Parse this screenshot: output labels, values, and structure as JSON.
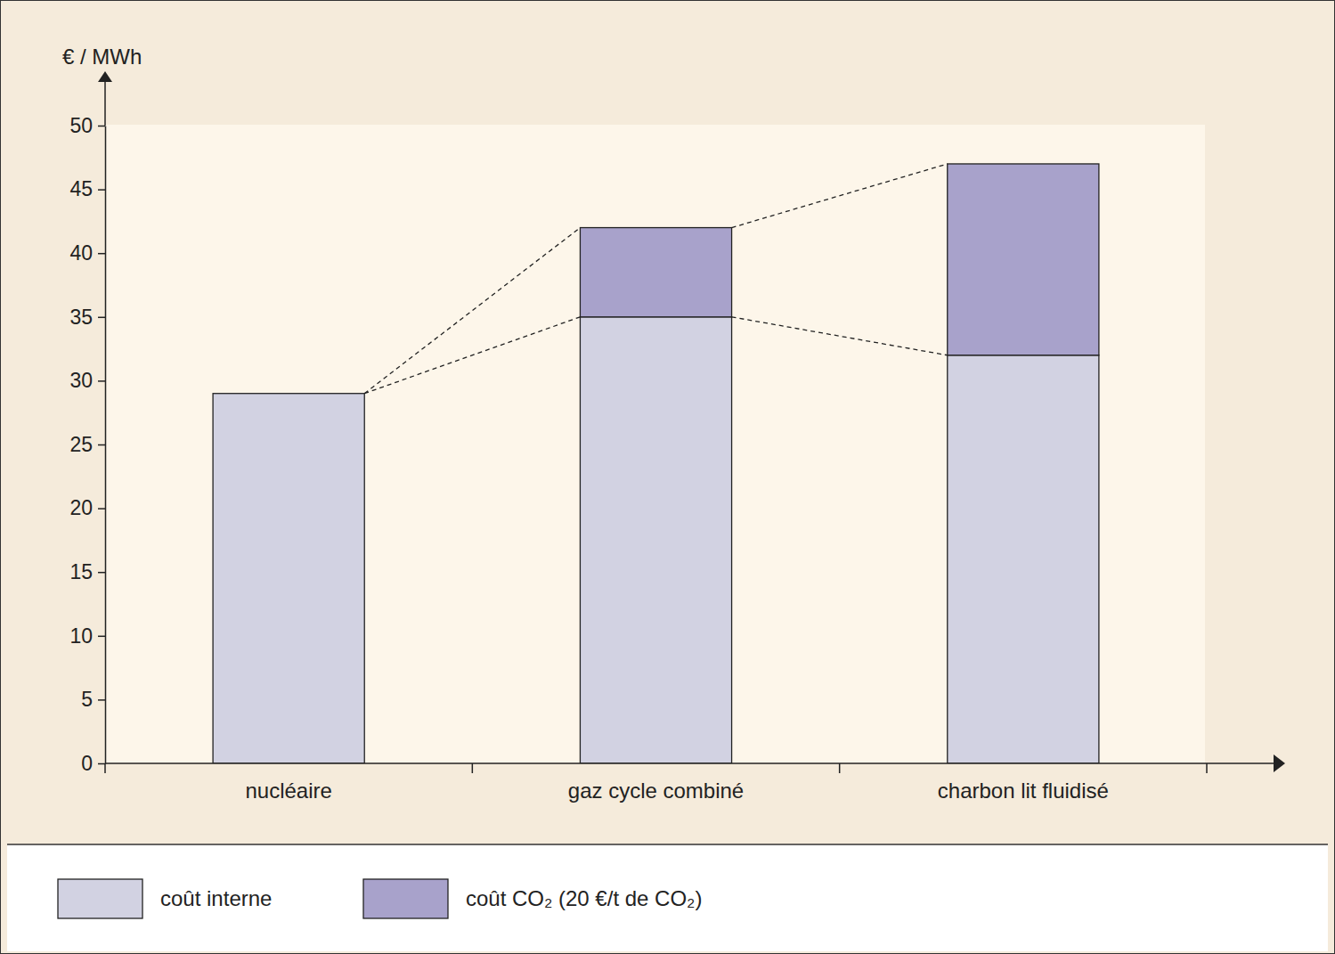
{
  "chart_data": {
    "type": "bar",
    "stacked": true,
    "y_label": "€ / MWh",
    "categories": [
      "nucléaire",
      "gaz cycle combiné",
      "charbon lit fluidisé"
    ],
    "series": [
      {
        "name": "coût interne",
        "color": "#d2d2e2",
        "values": [
          29,
          35,
          32
        ]
      },
      {
        "name": "coût CO₂ (20 €/t de CO₂)",
        "color": "#a8a2cb",
        "values": [
          null,
          7,
          15
        ]
      }
    ],
    "ylim": [
      0,
      50
    ],
    "yticks": [
      0,
      5,
      10,
      15,
      20,
      25,
      30,
      35,
      40,
      45,
      50
    ],
    "grid": false,
    "legend": "bottom"
  }
}
